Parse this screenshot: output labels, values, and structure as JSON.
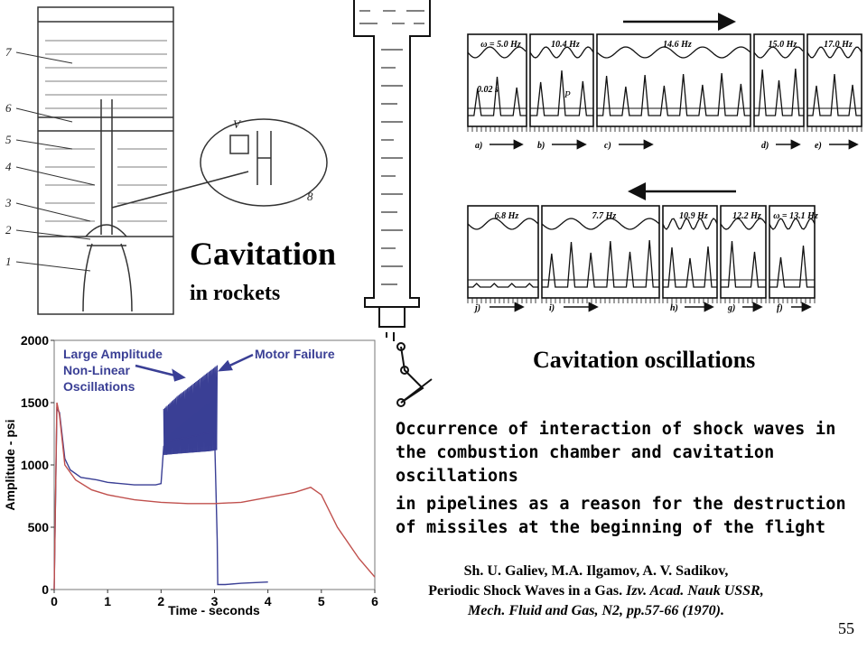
{
  "slide": {
    "title_main": "Cavitation",
    "title_sub": "in rockets",
    "oscillations_caption": "Cavitation oscillations",
    "occurrence_lines": [
      "Occurrence of interaction of shock waves in",
      "the combustion chamber and cavitation",
      "oscillations",
      "in pipelines as a reason for the destruction",
      "of missiles at the beginning of the flight"
    ],
    "reference": {
      "line1": "Sh. U. Galiev, M.A. Ilgamov, A. V. Sadikov,",
      "line2_a": "Periodic Shock Waves in a Gas. ",
      "line2_b": "Izv. Acad. Nauk USSR,",
      "line3_a": "Mech. Fluid and Gas",
      "line3_b": ", N2, pp.57-66 (1970)."
    },
    "page_number": "55"
  },
  "rocket_diagram": {
    "part_numbers": [
      "7",
      "6",
      "5",
      "4",
      "3",
      "2",
      "1"
    ],
    "inset_labels": [
      "V",
      "8"
    ]
  },
  "oscillation_panels": {
    "top_row": [
      {
        "freq": "ω = 5.0 Hz",
        "letter": "a)"
      },
      {
        "freq": "10.4 Hz",
        "letter": "b)"
      },
      {
        "freq": "14.6 Hz",
        "letter": "c)"
      },
      {
        "freq": "15.0 Hz",
        "letter": "d)"
      },
      {
        "freq": "17.0 Hz",
        "letter": "e)"
      }
    ],
    "bottom_row": [
      {
        "freq": "6.8 Hz",
        "letter": "j)"
      },
      {
        "freq": "7.7 Hz",
        "letter": "i)"
      },
      {
        "freq": "10.9 Hz",
        "letter": "h)"
      },
      {
        "freq": "12.2 Hz",
        "letter": "g)"
      },
      {
        "freq": "ω = 13.1 Hz",
        "letter": "f)"
      }
    ],
    "time_scale": "0.02 s",
    "pressure_label": "P"
  },
  "chart_data": {
    "type": "line",
    "title": "",
    "xlabel": "Time - seconds",
    "ylabel": "Amplitude - psi",
    "xlim": [
      0,
      6
    ],
    "ylim": [
      0,
      2000
    ],
    "x_ticks": [
      0,
      1,
      2,
      3,
      4,
      5,
      6
    ],
    "y_ticks": [
      0,
      500,
      1000,
      1500,
      2000
    ],
    "grid": false,
    "annotations": [
      "Large Amplitude",
      "Non-Linear",
      "Oscillations",
      "Motor Failure"
    ],
    "series": [
      {
        "color": "#3a3f95",
        "x": [
          0,
          0.05,
          0.1,
          0.2,
          0.3,
          0.5,
          0.8,
          1.0,
          1.5,
          1.9,
          2.0,
          2.05,
          2.2,
          2.5,
          2.8,
          3.0,
          3.05,
          3.06,
          3.2,
          3.5,
          4.0
        ],
        "y": [
          0,
          1450,
          1420,
          1050,
          960,
          900,
          880,
          860,
          840,
          840,
          850,
          1150,
          1200,
          1220,
          1250,
          1270,
          400,
          40,
          40,
          50,
          60
        ],
        "envelope_top": {
          "x": [
            2.05,
            2.3,
            2.6,
            2.9,
            3.05
          ],
          "y": [
            1450,
            1550,
            1650,
            1750,
            1800
          ]
        },
        "envelope_bottom": {
          "x": [
            2.05,
            2.3,
            2.6,
            2.9,
            3.05
          ],
          "y": [
            1080,
            1090,
            1100,
            1110,
            1120
          ]
        }
      },
      {
        "color": "#c0504d",
        "x": [
          0,
          0.05,
          0.1,
          0.2,
          0.4,
          0.7,
          1.0,
          1.5,
          2.0,
          2.5,
          3.0,
          3.5,
          4.0,
          4.5,
          4.8,
          5.0,
          5.3,
          5.7,
          6.0
        ],
        "y": [
          0,
          1500,
          1400,
          1000,
          880,
          800,
          760,
          720,
          700,
          690,
          690,
          700,
          740,
          780,
          820,
          760,
          500,
          250,
          100
        ]
      }
    ]
  }
}
